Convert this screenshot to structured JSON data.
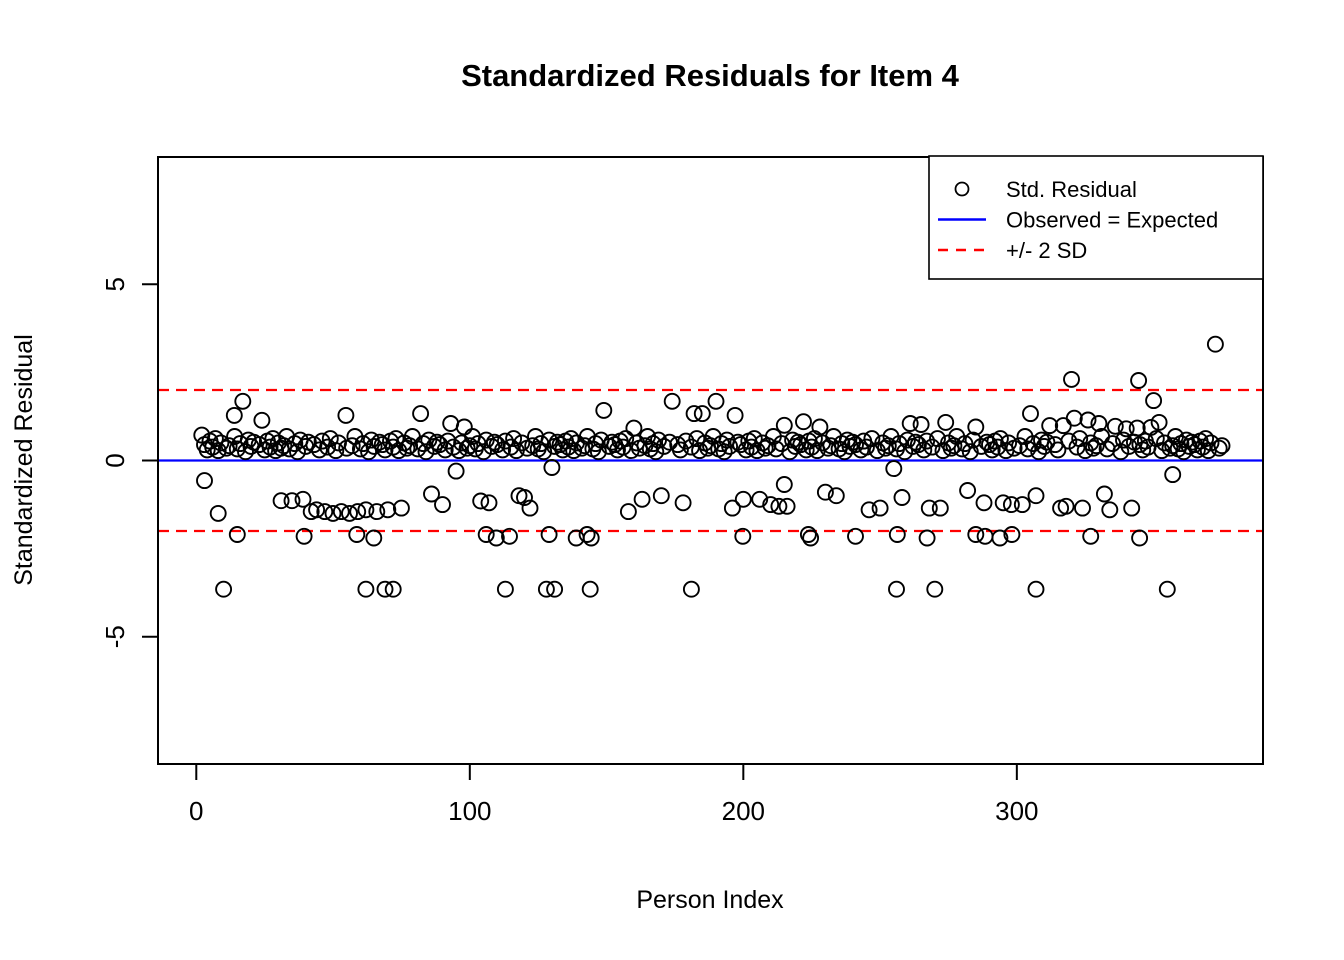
{
  "chart_data": {
    "type": "scatter",
    "title": "Standardized Residuals for Item 4",
    "xlabel": "Person Index",
    "ylabel": "Standardized Residual",
    "xlim": [
      -14,
      390
    ],
    "ylim": [
      -8.61,
      8.61
    ],
    "x_ticks": [
      0,
      100,
      200,
      300
    ],
    "y_ticks": [
      -5,
      0,
      5
    ],
    "grid": false,
    "frame_color": "#000000",
    "marker": "open-circle",
    "marker_color": "#000000",
    "legend": {
      "position": "top-right",
      "entries": [
        {
          "label": "Std. Residual",
          "symbol": "point",
          "color": "#000000"
        },
        {
          "label": "Observed = Expected",
          "symbol": "solid-line",
          "color": "#0000ff"
        },
        {
          "label": "+/- 2 SD",
          "symbol": "dashed-line",
          "color": "#ff0000"
        }
      ]
    },
    "reference_lines": [
      {
        "y": 0,
        "style": "solid",
        "color": "#0000ff",
        "meaning": "Observed = Expected"
      },
      {
        "y": 2,
        "style": "dashed",
        "color": "#ff0000",
        "meaning": "+2 SD"
      },
      {
        "y": -2,
        "style": "dashed",
        "color": "#ff0000",
        "meaning": "-2 SD"
      }
    ],
    "series": [
      {
        "name": "Std. Residual",
        "points_xy": [
          2,
          0.72,
          3,
          0.45,
          4,
          0.3,
          5,
          0.55,
          6,
          0.38,
          7,
          0.62,
          8,
          0.28,
          9,
          0.5,
          11,
          0.35,
          12,
          0.42,
          14,
          0.68,
          15,
          0.33,
          16,
          0.48,
          18,
          0.25,
          19,
          0.58,
          20,
          0.4,
          21,
          0.52,
          23,
          0.45,
          25,
          0.3,
          26,
          0.55,
          27,
          0.38,
          28,
          0.62,
          29,
          0.28,
          30,
          0.5,
          31,
          0.35,
          32,
          0.42,
          33,
          0.68,
          34,
          0.33,
          36,
          0.48,
          37,
          0.25,
          38,
          0.58,
          40,
          0.4,
          41,
          0.52,
          43,
          0.45,
          45,
          0.3,
          46,
          0.55,
          48,
          0.38,
          49,
          0.62,
          51,
          0.28,
          52,
          0.5,
          55,
          0.35,
          57,
          0.42,
          58,
          0.68,
          60,
          0.33,
          61,
          0.48,
          63,
          0.25,
          64,
          0.58,
          65,
          0.4,
          67,
          0.52,
          68,
          0.45,
          69,
          0.3,
          71,
          0.55,
          72,
          0.38,
          73,
          0.62,
          74,
          0.28,
          76,
          0.5,
          77,
          0.35,
          78,
          0.42,
          79,
          0.68,
          81,
          0.33,
          83,
          0.48,
          84,
          0.25,
          85,
          0.58,
          87,
          0.4,
          88,
          0.52,
          89,
          0.45,
          91,
          0.3,
          92,
          0.55,
          94,
          0.38,
          96,
          0.28,
          97,
          0.5,
          99,
          0.35,
          100,
          0.42,
          101,
          0.68,
          102,
          0.33,
          103,
          0.48,
          105,
          0.25,
          106,
          0.58,
          108,
          0.4,
          109,
          0.52,
          110,
          0.45,
          112,
          0.3,
          113,
          0.55,
          115,
          0.38,
          116,
          0.62,
          117,
          0.28,
          119,
          0.5,
          121,
          0.35,
          123,
          0.42,
          124,
          0.68,
          125,
          0.33,
          126,
          0.48,
          127,
          0.25,
          129,
          0.58,
          131,
          0.4,
          132,
          0.52,
          133,
          0.45,
          134,
          0.3,
          135,
          0.55,
          136,
          0.38,
          137,
          0.62,
          138,
          0.28,
          139,
          0.5,
          141,
          0.35,
          142,
          0.42,
          143,
          0.68,
          145,
          0.33,
          146,
          0.48,
          147,
          0.25,
          148,
          0.58,
          151,
          0.4,
          152,
          0.52,
          153,
          0.45,
          154,
          0.3,
          155,
          0.55,
          156,
          0.38,
          157,
          0.62,
          159,
          0.28,
          161,
          0.5,
          162,
          0.35,
          164,
          0.42,
          165,
          0.68,
          166,
          0.33,
          167,
          0.48,
          168,
          0.25,
          169,
          0.58,
          171,
          0.4,
          173,
          0.52,
          176,
          0.45,
          177,
          0.3,
          179,
          0.55,
          181,
          0.38,
          183,
          0.62,
          184,
          0.28,
          186,
          0.5,
          187,
          0.35,
          188,
          0.42,
          189,
          0.68,
          191,
          0.33,
          192,
          0.48,
          193,
          0.25,
          194,
          0.58,
          195,
          0.4,
          198,
          0.52,
          199,
          0.45,
          201,
          0.3,
          202,
          0.55,
          203,
          0.38,
          204,
          0.62,
          205,
          0.28,
          207,
          0.5,
          208,
          0.35,
          209,
          0.42,
          211,
          0.68,
          212,
          0.33,
          214,
          0.48,
          217,
          0.25,
          218,
          0.58,
          219,
          0.4,
          220,
          0.52,
          221,
          0.45,
          223,
          0.3,
          224,
          0.55,
          225,
          0.38,
          226,
          0.62,
          227,
          0.28,
          229,
          0.5,
          231,
          0.35,
          232,
          0.42,
          233,
          0.68,
          235,
          0.33,
          236,
          0.48,
          237,
          0.25,
          238,
          0.58,
          239,
          0.4,
          240,
          0.52,
          241,
          0.45,
          243,
          0.3,
          244,
          0.55,
          245,
          0.38,
          247,
          0.62,
          249,
          0.28,
          251,
          0.5,
          252,
          0.35,
          253,
          0.42,
          254,
          0.68,
          256,
          0.33,
          257,
          0.48,
          259,
          0.25,
          260,
          0.58,
          262,
          0.4,
          263,
          0.52,
          264,
          0.45,
          266,
          0.3,
          267,
          0.55,
          269,
          0.38,
          271,
          0.62,
          273,
          0.28,
          275,
          0.5,
          276,
          0.35,
          277,
          0.42,
          278,
          0.68,
          280,
          0.33,
          281,
          0.48,
          283,
          0.25,
          284,
          0.58,
          287,
          0.4,
          289,
          0.52,
          290,
          0.45,
          291,
          0.3,
          292,
          0.55,
          293,
          0.38,
          294,
          0.62,
          296,
          0.28,
          297,
          0.5,
          299,
          0.35,
          301,
          0.42,
          303,
          0.68,
          304,
          0.33,
          306,
          0.48,
          308,
          0.25,
          309,
          0.58,
          310,
          0.4,
          311,
          0.52,
          314,
          0.45,
          315,
          0.3,
          319,
          0.55,
          322,
          0.38,
          323,
          0.62,
          325,
          0.28,
          327,
          0.5,
          328,
          0.35,
          329,
          0.42,
          331,
          0.68,
          333,
          0.33,
          335,
          0.48,
          338,
          0.25,
          339,
          0.58,
          341,
          0.4,
          343,
          0.52,
          345,
          0.45,
          346,
          0.3,
          347,
          0.55,
          348,
          0.38,
          351,
          0.62,
          353,
          0.28,
          354,
          0.5,
          356,
          0.35,
          357,
          0.42,
          358,
          0.68,
          359,
          0.33,
          360,
          0.48,
          361,
          0.25,
          362,
          0.58,
          363,
          0.4,
          364,
          0.52,
          365,
          0.45,
          366,
          0.3,
          367,
          0.55,
          368,
          0.38,
          369,
          0.62,
          370,
          0.28,
          371,
          0.5,
          374,
          0.35,
          375,
          0.42,
          13.9,
          1.28,
          17,
          1.68,
          24,
          1.14,
          54.7,
          1.28,
          82,
          1.33,
          93,
          1.05,
          98,
          0.95,
          149,
          1.42,
          160,
          0.92,
          174,
          1.68,
          182,
          1.33,
          185,
          1.33,
          190,
          1.68,
          197,
          1.28,
          215,
          1.0,
          222,
          1.1,
          228,
          0.95,
          261,
          1.05,
          265,
          1.02,
          274,
          1.08,
          285,
          0.95,
          305,
          1.33,
          312,
          0.99,
          317,
          0.99,
          321,
          1.2,
          326,
          1.15,
          330,
          1.05,
          336,
          0.97,
          340,
          0.9,
          344,
          0.92,
          349,
          0.94,
          350,
          1.7,
          352,
          1.08,
          320,
          2.3,
          344.5,
          2.27,
          372.6,
          3.3,
          3,
          -0.57,
          95,
          -0.3,
          130,
          -0.2,
          215,
          -0.68,
          255,
          -0.23,
          357,
          -0.4,
          8,
          -1.5,
          31,
          -1.14,
          35,
          -1.14,
          39,
          -1.1,
          42,
          -1.45,
          44,
          -1.4,
          47,
          -1.45,
          50,
          -1.5,
          53,
          -1.45,
          56,
          -1.5,
          59,
          -1.45,
          62,
          -1.4,
          66,
          -1.45,
          70,
          -1.4,
          75,
          -1.35,
          86,
          -0.95,
          90,
          -1.25,
          104,
          -1.15,
          107,
          -1.2,
          118,
          -1.0,
          120,
          -1.05,
          122,
          -1.35,
          158,
          -1.45,
          163,
          -1.1,
          170,
          -1.0,
          178,
          -1.2,
          196,
          -1.35,
          200,
          -1.1,
          206,
          -1.1,
          210,
          -1.25,
          213,
          -1.3,
          216,
          -1.3,
          230,
          -0.9,
          234,
          -1.0,
          246,
          -1.4,
          250,
          -1.35,
          258,
          -1.05,
          268,
          -1.35,
          272,
          -1.35,
          282,
          -0.85,
          288,
          -1.2,
          295,
          -1.2,
          298,
          -1.25,
          302,
          -1.25,
          307,
          -1.0,
          316,
          -1.35,
          318,
          -1.3,
          324,
          -1.35,
          332,
          -0.95,
          334,
          -1.4,
          342,
          -1.35,
          15,
          -2.1,
          39.4,
          -2.15,
          58.7,
          -2.1,
          64.9,
          -2.2,
          106,
          -2.1,
          109.7,
          -2.2,
          114.5,
          -2.15,
          129,
          -2.1,
          138.9,
          -2.2,
          142.9,
          -2.1,
          144.4,
          -2.2,
          199.8,
          -2.15,
          223.8,
          -2.1,
          224.6,
          -2.2,
          241,
          -2.15,
          256.3,
          -2.1,
          267.2,
          -2.2,
          285,
          -2.1,
          288.4,
          -2.15,
          293.8,
          -2.2,
          298.2,
          -2.1,
          327,
          -2.15,
          344.9,
          -2.2,
          10,
          -3.65,
          62,
          -3.65,
          69,
          -3.65,
          72,
          -3.65,
          113,
          -3.65,
          128,
          -3.65,
          131,
          -3.65,
          144,
          -3.65,
          181,
          -3.65,
          256,
          -3.65,
          270,
          -3.65,
          307,
          -3.65,
          355,
          -3.65
        ]
      }
    ]
  },
  "colors": {
    "background": "#ffffff",
    "foreground": "#000000",
    "observed_expected_line": "#0000ff",
    "sd_line": "#ff0000"
  }
}
